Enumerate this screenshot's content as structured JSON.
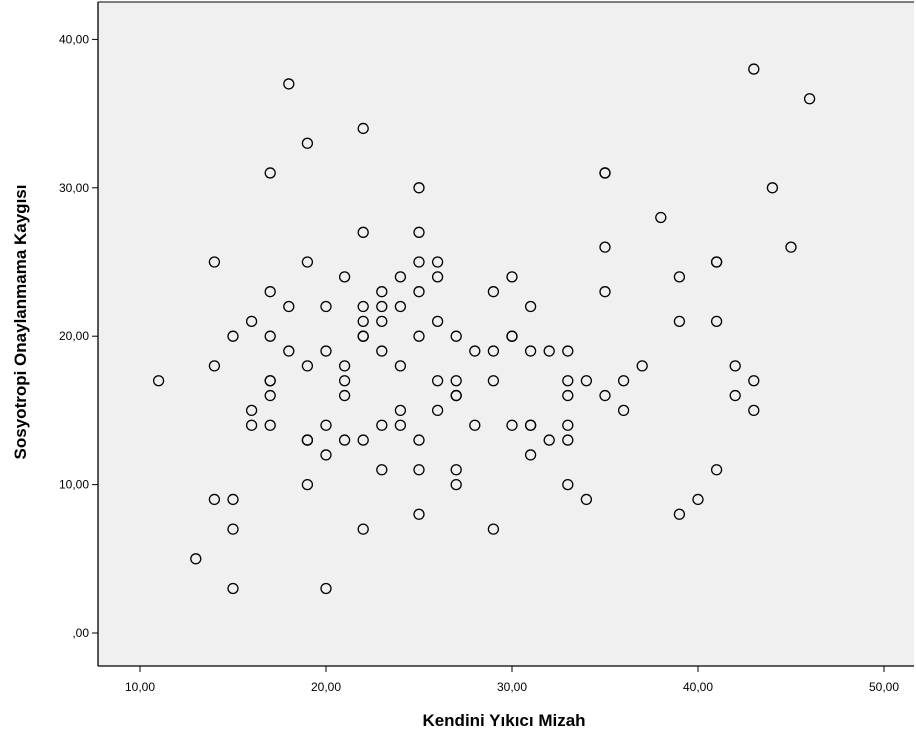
{
  "chart_data": {
    "type": "scatter",
    "xlabel": "Kendini Yıkıcı Mizah",
    "ylabel": "Sosyotropi Onaylanmama Kaygısı",
    "xlim": [
      8,
      52
    ],
    "ylim": [
      -2,
      42
    ],
    "x_ticks": [
      {
        "value": 10,
        "label": "10,00"
      },
      {
        "value": 20,
        "label": "20,00"
      },
      {
        "value": 30,
        "label": "30,00"
      },
      {
        "value": 40,
        "label": "40,00"
      },
      {
        "value": 50,
        "label": "50,00"
      }
    ],
    "y_ticks": [
      {
        "value": 0,
        "label": ",00"
      },
      {
        "value": 10,
        "label": "10,00"
      },
      {
        "value": 20,
        "label": "20,00"
      },
      {
        "value": 30,
        "label": "30,00"
      },
      {
        "value": 40,
        "label": "40,00"
      }
    ],
    "plot_background": "#f0f0f0",
    "marker_color": "#000000",
    "grid": false,
    "points": [
      [
        11,
        17
      ],
      [
        13,
        5
      ],
      [
        14,
        25
      ],
      [
        14,
        18
      ],
      [
        14,
        9
      ],
      [
        15,
        20
      ],
      [
        15,
        9
      ],
      [
        15,
        7
      ],
      [
        15,
        3
      ],
      [
        16,
        21
      ],
      [
        16,
        15
      ],
      [
        16,
        14
      ],
      [
        17,
        31
      ],
      [
        17,
        23
      ],
      [
        17,
        20
      ],
      [
        17,
        17
      ],
      [
        17,
        17
      ],
      [
        17,
        16
      ],
      [
        17,
        14
      ],
      [
        18,
        37
      ],
      [
        18,
        22
      ],
      [
        18,
        19
      ],
      [
        19,
        33
      ],
      [
        19,
        25
      ],
      [
        19,
        18
      ],
      [
        19,
        13
      ],
      [
        19,
        13
      ],
      [
        19,
        10
      ],
      [
        20,
        22
      ],
      [
        20,
        19
      ],
      [
        20,
        14
      ],
      [
        20,
        12
      ],
      [
        20,
        3
      ],
      [
        21,
        24
      ],
      [
        21,
        18
      ],
      [
        21,
        17
      ],
      [
        21,
        16
      ],
      [
        21,
        13
      ],
      [
        22,
        34
      ],
      [
        22,
        27
      ],
      [
        22,
        22
      ],
      [
        22,
        21
      ],
      [
        22,
        20
      ],
      [
        22,
        20
      ],
      [
        22,
        13
      ],
      [
        22,
        7
      ],
      [
        23,
        23
      ],
      [
        23,
        22
      ],
      [
        23,
        21
      ],
      [
        23,
        19
      ],
      [
        23,
        14
      ],
      [
        23,
        11
      ],
      [
        24,
        24
      ],
      [
        24,
        22
      ],
      [
        24,
        18
      ],
      [
        24,
        15
      ],
      [
        24,
        14
      ],
      [
        25,
        30
      ],
      [
        25,
        27
      ],
      [
        25,
        25
      ],
      [
        25,
        23
      ],
      [
        25,
        20
      ],
      [
        25,
        13
      ],
      [
        25,
        11
      ],
      [
        25,
        8
      ],
      [
        26,
        25
      ],
      [
        26,
        24
      ],
      [
        26,
        21
      ],
      [
        26,
        17
      ],
      [
        26,
        15
      ],
      [
        27,
        20
      ],
      [
        27,
        17
      ],
      [
        27,
        16
      ],
      [
        27,
        16
      ],
      [
        27,
        11
      ],
      [
        27,
        10
      ],
      [
        28,
        19
      ],
      [
        28,
        14
      ],
      [
        29,
        23
      ],
      [
        29,
        19
      ],
      [
        29,
        17
      ],
      [
        29,
        7
      ],
      [
        30,
        24
      ],
      [
        30,
        20
      ],
      [
        30,
        20
      ],
      [
        30,
        14
      ],
      [
        31,
        22
      ],
      [
        31,
        19
      ],
      [
        31,
        14
      ],
      [
        31,
        14
      ],
      [
        31,
        12
      ],
      [
        32,
        19
      ],
      [
        32,
        13
      ],
      [
        33,
        19
      ],
      [
        33,
        17
      ],
      [
        33,
        16
      ],
      [
        33,
        14
      ],
      [
        33,
        13
      ],
      [
        33,
        10
      ],
      [
        34,
        17
      ],
      [
        34,
        9
      ],
      [
        35,
        31
      ],
      [
        35,
        31
      ],
      [
        35,
        26
      ],
      [
        35,
        23
      ],
      [
        35,
        16
      ],
      [
        36,
        17
      ],
      [
        36,
        15
      ],
      [
        37,
        18
      ],
      [
        38,
        28
      ],
      [
        39,
        24
      ],
      [
        39,
        21
      ],
      [
        39,
        8
      ],
      [
        40,
        9
      ],
      [
        41,
        25
      ],
      [
        41,
        25
      ],
      [
        41,
        21
      ],
      [
        41,
        11
      ],
      [
        42,
        18
      ],
      [
        42,
        16
      ],
      [
        43,
        38
      ],
      [
        43,
        17
      ],
      [
        43,
        15
      ],
      [
        44,
        30
      ],
      [
        45,
        26
      ],
      [
        46,
        36
      ]
    ]
  }
}
